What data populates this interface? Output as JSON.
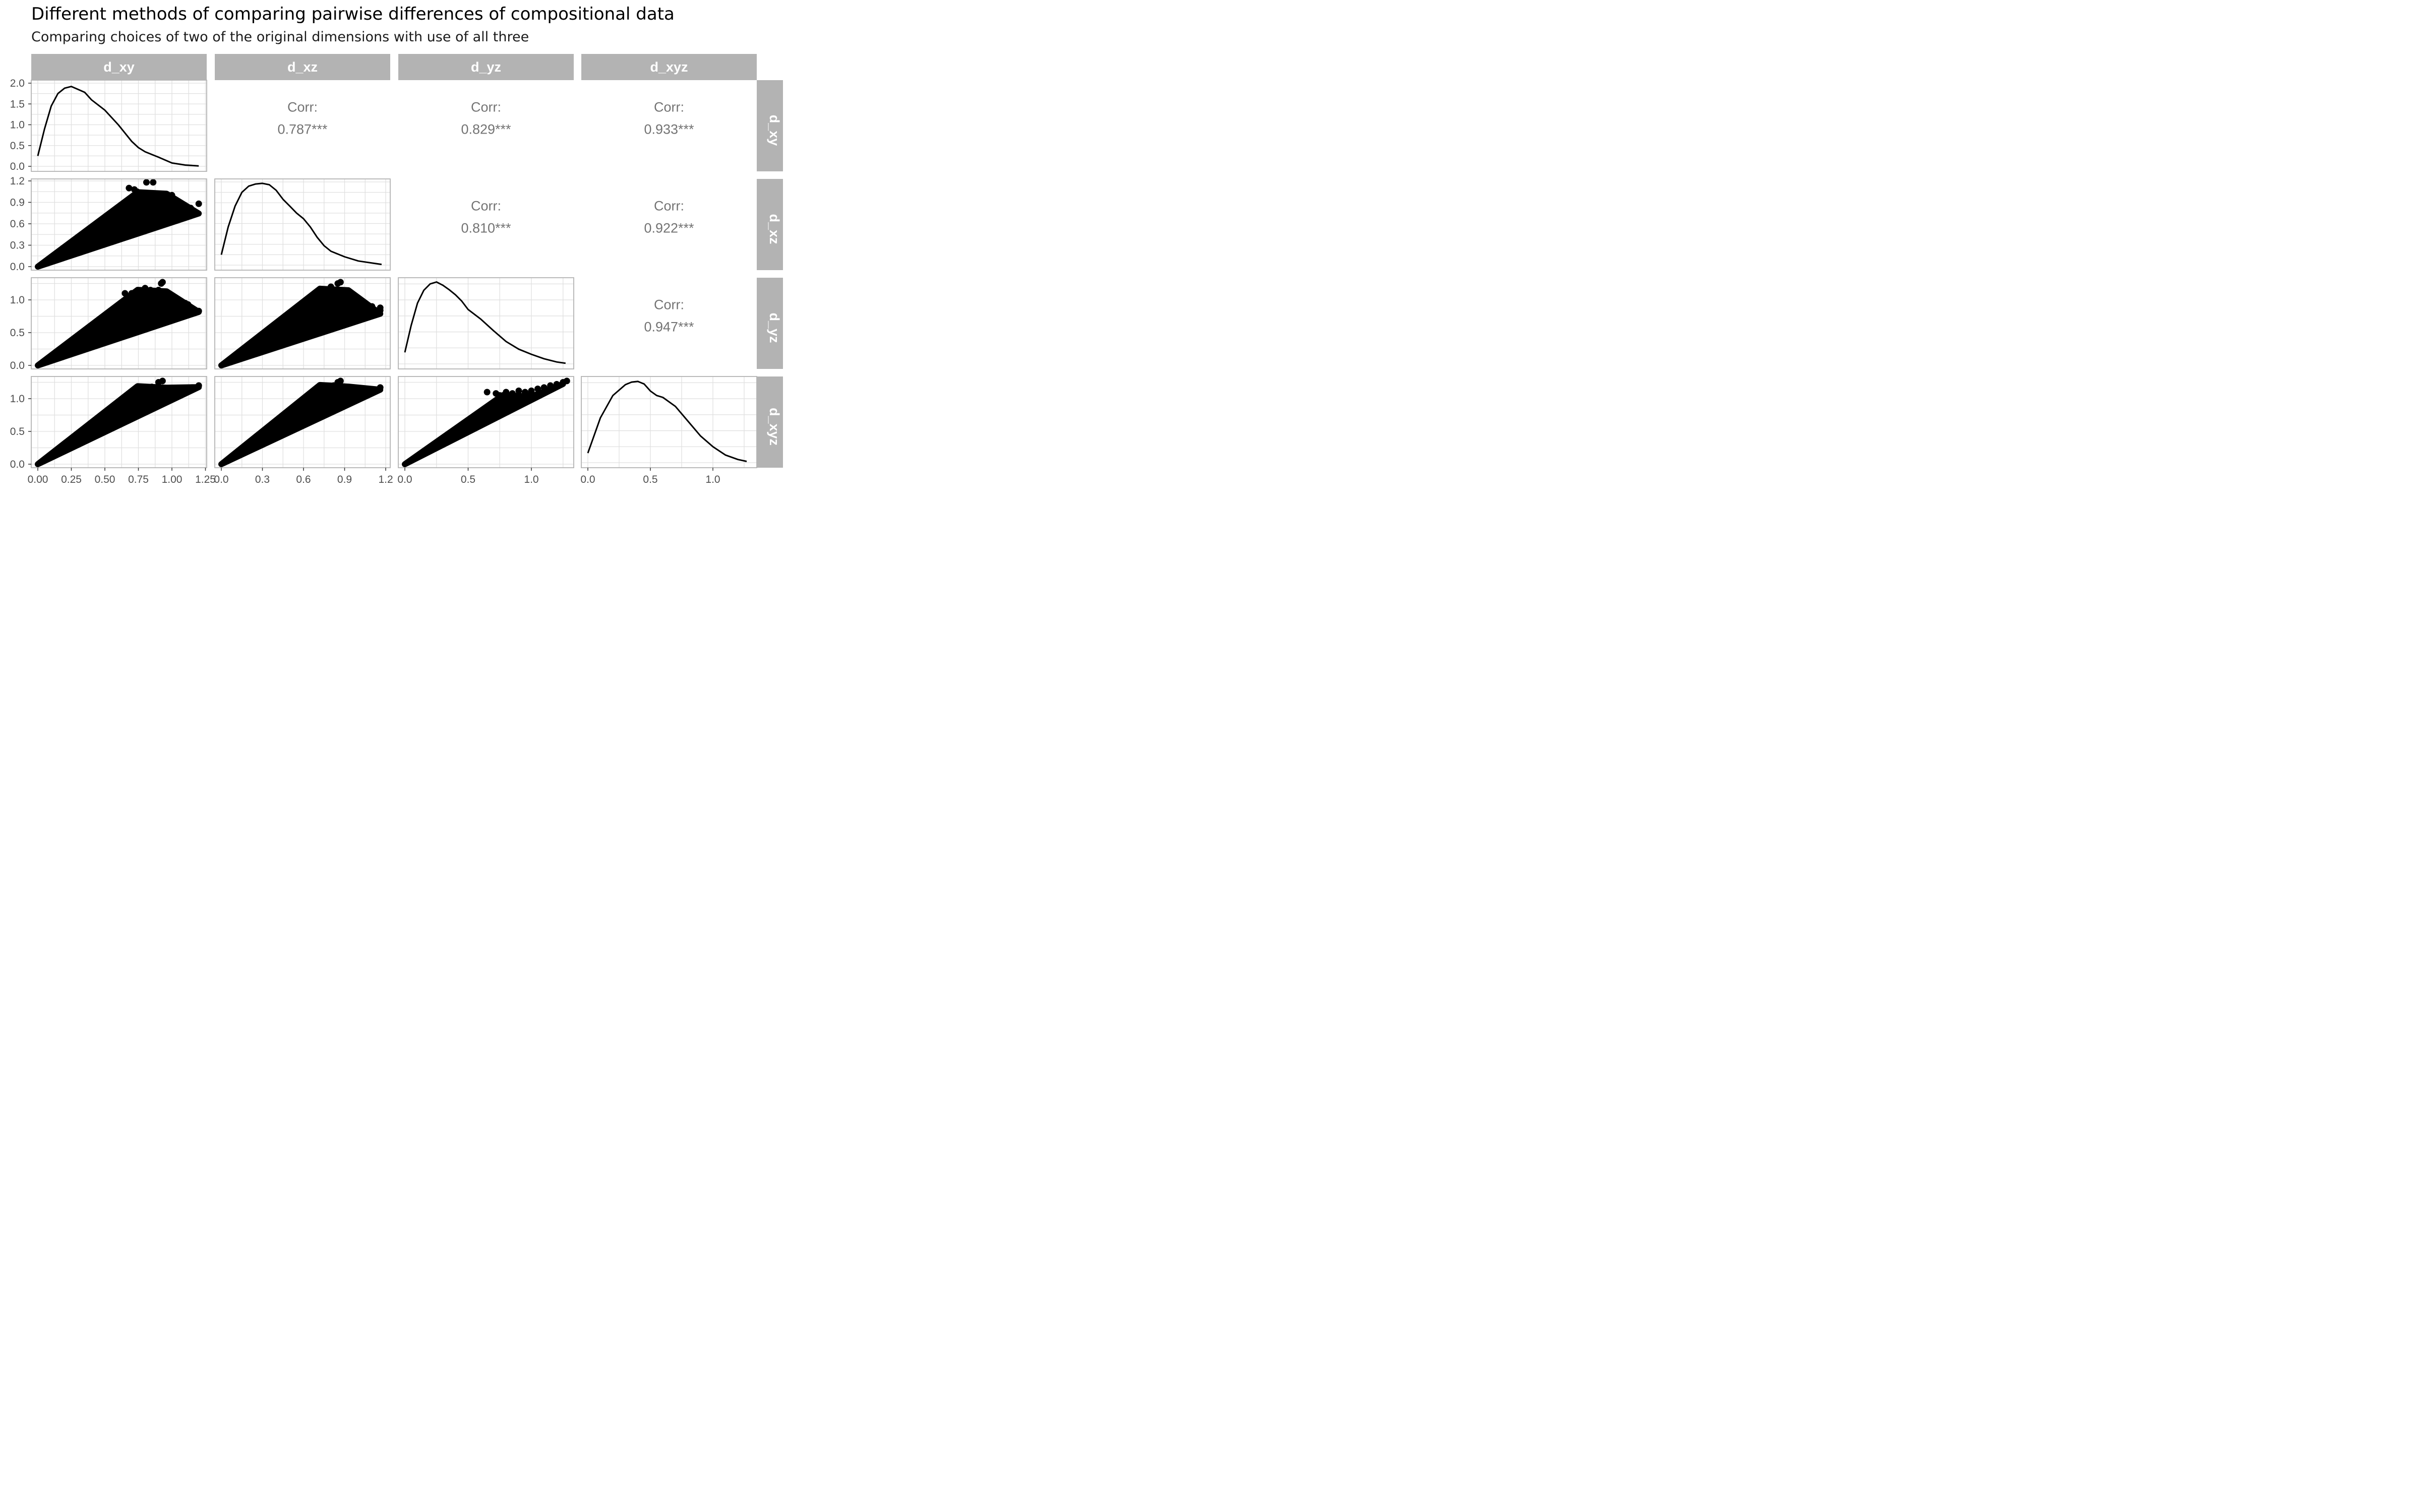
{
  "title": "Different methods of comparing pairwise differences of compositional data",
  "subtitle": "Comparing choices of two of the original dimensions with use of all three",
  "chart_data": {
    "type": "scatter",
    "matrix_kind": "pairs-plot",
    "variables": [
      "d_xy",
      "d_xz",
      "d_yz",
      "d_xyz"
    ],
    "x_ticks": [
      [
        "0.00",
        "0.25",
        "0.50",
        "0.75",
        "1.00",
        "1.25"
      ],
      [
        "0.0",
        "0.3",
        "0.6",
        "0.9",
        "1.2"
      ],
      [
        "0.0",
        "0.5",
        "1.0"
      ],
      [
        "0.0",
        "0.5",
        "1.0"
      ]
    ],
    "y_ticks": [
      [
        "0.0",
        "0.5",
        "1.0",
        "1.5",
        "2.0"
      ],
      [
        "0.0",
        "0.3",
        "0.6",
        "0.9",
        "1.2"
      ],
      [
        "0.0",
        "0.5",
        "1.0"
      ],
      [
        "0.0",
        "0.5",
        "1.0"
      ]
    ],
    "correlations": [
      {
        "row": "d_xy",
        "col": "d_xz",
        "label": "Corr:",
        "value": "0.787***"
      },
      {
        "row": "d_xy",
        "col": "d_yz",
        "label": "Corr:",
        "value": "0.829***"
      },
      {
        "row": "d_xy",
        "col": "d_xyz",
        "label": "Corr:",
        "value": "0.933***"
      },
      {
        "row": "d_xz",
        "col": "d_yz",
        "label": "Corr:",
        "value": "0.810***"
      },
      {
        "row": "d_xz",
        "col": "d_xyz",
        "label": "Corr:",
        "value": "0.922***"
      },
      {
        "row": "d_yz",
        "col": "d_xyz",
        "label": "Corr:",
        "value": "0.947***"
      }
    ],
    "densities": [
      {
        "variable": "d_xy",
        "x": [
          0.0,
          0.05,
          0.1,
          0.15,
          0.2,
          0.25,
          0.3,
          0.35,
          0.4,
          0.5,
          0.6,
          0.7,
          0.75,
          0.8,
          0.9,
          1.0,
          1.1,
          1.2
        ],
        "y": [
          0.25,
          0.9,
          1.45,
          1.75,
          1.88,
          1.92,
          1.85,
          1.78,
          1.6,
          1.35,
          1.0,
          0.6,
          0.45,
          0.35,
          0.22,
          0.08,
          0.03,
          0.01
        ]
      },
      {
        "variable": "d_xz",
        "x": [
          0.0,
          0.05,
          0.1,
          0.15,
          0.2,
          0.25,
          0.3,
          0.35,
          0.4,
          0.45,
          0.5,
          0.55,
          0.6,
          0.65,
          0.7,
          0.75,
          0.8,
          0.9,
          1.0,
          1.1,
          1.17
        ],
        "y": [
          0.15,
          0.55,
          0.85,
          1.05,
          1.14,
          1.17,
          1.18,
          1.16,
          1.08,
          0.95,
          0.85,
          0.75,
          0.67,
          0.55,
          0.4,
          0.28,
          0.2,
          0.12,
          0.06,
          0.03,
          0.01
        ]
      },
      {
        "variable": "d_yz",
        "x": [
          0.0,
          0.05,
          0.1,
          0.15,
          0.2,
          0.25,
          0.3,
          0.35,
          0.4,
          0.45,
          0.5,
          0.6,
          0.7,
          0.8,
          0.9,
          1.0,
          1.1,
          1.2,
          1.27
        ],
        "y": [
          0.18,
          0.6,
          0.95,
          1.15,
          1.25,
          1.28,
          1.23,
          1.16,
          1.08,
          0.98,
          0.85,
          0.7,
          0.52,
          0.35,
          0.23,
          0.15,
          0.08,
          0.03,
          0.01
        ]
      },
      {
        "variable": "d_xyz",
        "x": [
          0.0,
          0.1,
          0.2,
          0.3,
          0.35,
          0.4,
          0.45,
          0.5,
          0.55,
          0.6,
          0.7,
          0.8,
          0.9,
          1.0,
          1.1,
          1.2,
          1.27
        ],
        "y": [
          0.15,
          0.7,
          1.05,
          1.22,
          1.26,
          1.27,
          1.23,
          1.12,
          1.05,
          1.02,
          0.88,
          0.65,
          0.42,
          0.25,
          0.12,
          0.05,
          0.02
        ]
      }
    ],
    "outlier_points": {
      "d_xz~d_xy": [
        [
          0.68,
          1.1
        ],
        [
          0.72,
          1.08
        ],
        [
          0.74,
          1.05
        ],
        [
          0.81,
          1.18
        ],
        [
          0.86,
          1.18
        ],
        [
          0.82,
          1.0
        ],
        [
          0.75,
          0.95
        ],
        [
          0.78,
          0.92
        ],
        [
          0.88,
          0.88
        ],
        [
          0.9,
          0.85
        ],
        [
          0.95,
          0.87
        ],
        [
          0.96,
          0.83
        ],
        [
          1.0,
          1.0
        ],
        [
          1.02,
          0.84
        ],
        [
          1.05,
          0.7
        ],
        [
          1.08,
          0.82
        ],
        [
          1.1,
          0.79
        ],
        [
          1.12,
          0.8
        ],
        [
          1.14,
          0.82
        ],
        [
          1.16,
          0.76
        ],
        [
          1.2,
          0.88
        ],
        [
          0.85,
          0.78
        ],
        [
          0.92,
          0.78
        ],
        [
          1.0,
          0.75
        ]
      ],
      "d_yz~d_xy": [
        [
          0.65,
          1.1
        ],
        [
          0.7,
          1.1
        ],
        [
          0.72,
          1.05
        ],
        [
          0.8,
          1.18
        ],
        [
          0.84,
          1.15
        ],
        [
          0.92,
          1.25
        ],
        [
          0.93,
          1.27
        ],
        [
          0.9,
          1.15
        ],
        [
          0.93,
          1.1
        ],
        [
          0.82,
          0.95
        ],
        [
          0.88,
          0.92
        ],
        [
          0.95,
          0.9
        ],
        [
          1.0,
          1.0
        ],
        [
          1.02,
          0.98
        ],
        [
          1.05,
          0.97
        ],
        [
          1.1,
          0.95
        ],
        [
          1.12,
          0.93
        ],
        [
          1.15,
          0.8
        ],
        [
          1.2,
          0.83
        ],
        [
          0.98,
          0.87
        ],
        [
          1.08,
          0.85
        ]
      ],
      "d_yz~d_xz": [
        [
          0.8,
          1.2
        ],
        [
          0.85,
          1.25
        ],
        [
          0.87,
          1.27
        ],
        [
          0.82,
          1.1
        ],
        [
          0.88,
          1.05
        ],
        [
          0.9,
          1.1
        ],
        [
          0.92,
          0.98
        ],
        [
          0.95,
          0.95
        ],
        [
          0.98,
          0.88
        ],
        [
          1.0,
          0.9
        ],
        [
          1.03,
          0.85
        ],
        [
          1.06,
          0.8
        ],
        [
          1.1,
          0.9
        ],
        [
          1.16,
          0.88
        ],
        [
          1.16,
          0.84
        ],
        [
          0.93,
          0.82
        ],
        [
          0.88,
          0.92
        ],
        [
          0.96,
          0.77
        ]
      ],
      "d_xyz~d_xy": [
        [
          0.7,
          1.1
        ],
        [
          0.72,
          1.05
        ],
        [
          0.78,
          1.1
        ],
        [
          0.8,
          1.18
        ],
        [
          0.85,
          1.18
        ],
        [
          0.9,
          1.25
        ],
        [
          0.93,
          1.27
        ],
        [
          0.88,
          1.12
        ],
        [
          1.0,
          1.1
        ],
        [
          1.05,
          1.12
        ],
        [
          1.1,
          1.15
        ],
        [
          1.15,
          1.17
        ],
        [
          1.2,
          1.2
        ]
      ],
      "d_xyz~d_xz": [
        [
          0.7,
          1.15
        ],
        [
          0.75,
          1.1
        ],
        [
          0.82,
          1.2
        ],
        [
          0.85,
          1.25
        ],
        [
          0.87,
          1.27
        ],
        [
          0.8,
          1.12
        ],
        [
          0.88,
          1.12
        ],
        [
          0.9,
          1.08
        ],
        [
          0.95,
          1.1
        ],
        [
          1.0,
          1.12
        ],
        [
          1.1,
          1.12
        ],
        [
          1.16,
          1.17
        ]
      ],
      "d_xyz~d_yz": [
        [
          0.65,
          1.1
        ],
        [
          0.72,
          1.08
        ],
        [
          0.8,
          1.1
        ],
        [
          0.85,
          1.08
        ],
        [
          0.9,
          1.12
        ],
        [
          0.95,
          1.1
        ],
        [
          1.0,
          1.12
        ],
        [
          1.05,
          1.15
        ],
        [
          1.1,
          1.17
        ],
        [
          1.15,
          1.2
        ],
        [
          1.2,
          1.22
        ],
        [
          1.25,
          1.25
        ],
        [
          1.28,
          1.27
        ],
        [
          0.75,
          1.05
        ],
        [
          0.98,
          1.05
        ]
      ]
    },
    "grid": true,
    "point_color": "#000000",
    "line_color": "#000000",
    "strip_color": "#b3b3b3",
    "strip_text_color": "#ffffff",
    "panel_border_color": "#b3b3b3",
    "grid_color": "#e0e0e0",
    "corr_text_color": "#737373"
  }
}
